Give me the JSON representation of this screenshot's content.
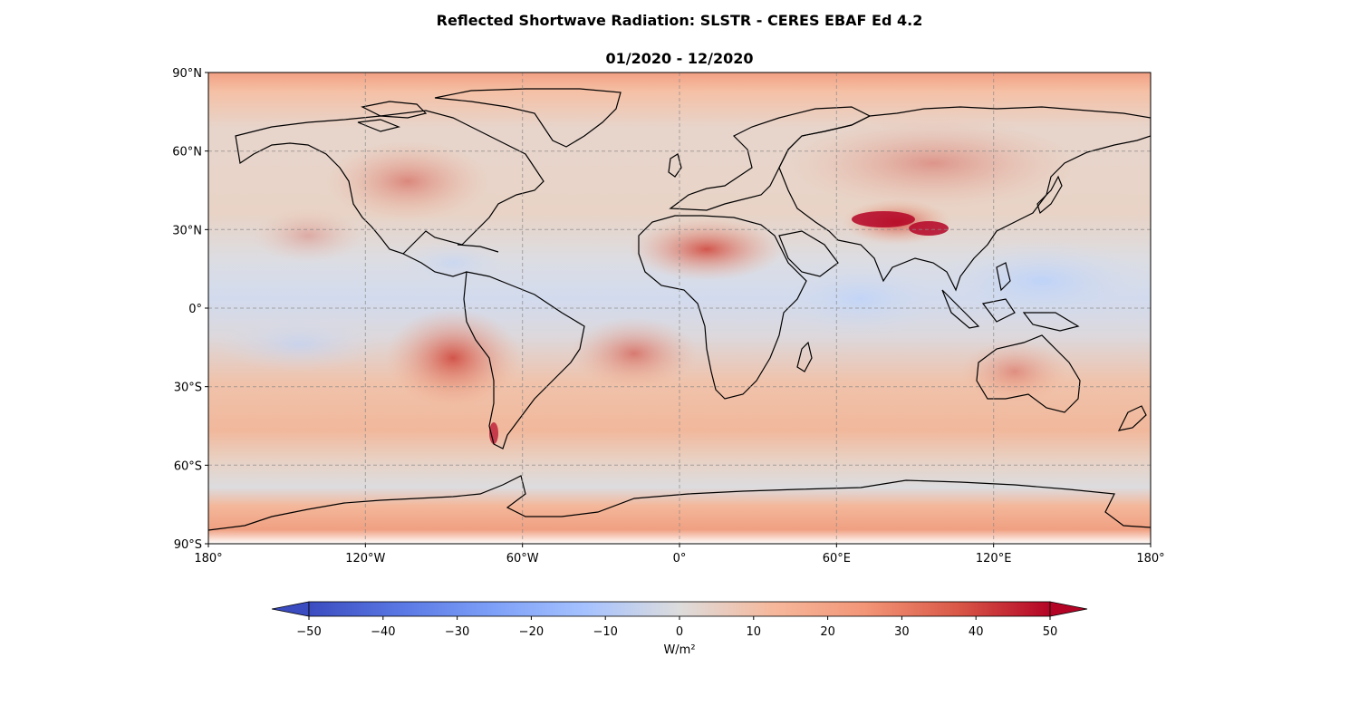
{
  "title": "Reflected Shortwave Radiation: SLSTR - CERES EBAF Ed 4.2",
  "subtitle": "01/2020 - 12/2020",
  "map": {
    "projection": "PlateCarree",
    "lon_range": [
      -180,
      180
    ],
    "lat_range": [
      -90,
      90
    ],
    "grid": true,
    "lon_ticks": [
      {
        "value": -180,
        "label": "180°"
      },
      {
        "value": -120,
        "label": "120°W"
      },
      {
        "value": -60,
        "label": "60°W"
      },
      {
        "value": 0,
        "label": "0°"
      },
      {
        "value": 60,
        "label": "60°E"
      },
      {
        "value": 120,
        "label": "120°E"
      },
      {
        "value": 180,
        "label": "180°"
      }
    ],
    "lat_ticks": [
      {
        "value": 90,
        "label": "90°N"
      },
      {
        "value": 60,
        "label": "60°N"
      },
      {
        "value": 30,
        "label": "30°N"
      },
      {
        "value": 0,
        "label": "0°"
      },
      {
        "value": -30,
        "label": "30°S"
      },
      {
        "value": -60,
        "label": "60°S"
      },
      {
        "value": -90,
        "label": "90°S"
      }
    ]
  },
  "colorbar": {
    "colormap": "coolwarm",
    "range": [
      -50,
      50
    ],
    "extend": "both",
    "ticks": [
      {
        "value": -50,
        "label": "−50"
      },
      {
        "value": -40,
        "label": "−40"
      },
      {
        "value": -30,
        "label": "−30"
      },
      {
        "value": -20,
        "label": "−20"
      },
      {
        "value": -10,
        "label": "−10"
      },
      {
        "value": 0,
        "label": "0"
      },
      {
        "value": 10,
        "label": "10"
      },
      {
        "value": 20,
        "label": "20"
      },
      {
        "value": 30,
        "label": "30"
      },
      {
        "value": 40,
        "label": "40"
      },
      {
        "value": 50,
        "label": "50"
      }
    ],
    "label": "W/m²"
  },
  "colors": {
    "cold": "#3b4cc0",
    "neutral": "#dddddd",
    "warm": "#b40426"
  }
}
